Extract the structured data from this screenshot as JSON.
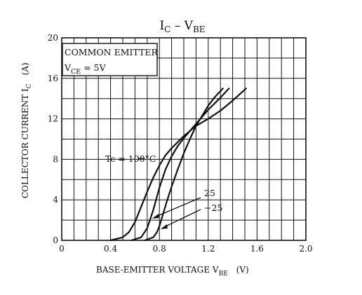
{
  "chart_data": {
    "type": "line",
    "title": "I_C – V_BE",
    "title_main": "I",
    "title_sub1": "C",
    "title_dash": " – V",
    "title_sub2": "BE",
    "xlabel_main": "BASE-EMITTER VOLTAGE  V",
    "xlabel_sub": "BE",
    "xlabel_unit": "(V)",
    "ylabel_main": "COLLECTOR CURRENT  I",
    "ylabel_sub": "C",
    "ylabel_unit": "(A)",
    "xlim": [
      0,
      2.0
    ],
    "ylim": [
      0,
      20
    ],
    "x_ticks": [
      0,
      0.4,
      0.8,
      1.2,
      1.6,
      2.0
    ],
    "x_tick_labels": [
      "0",
      "0.4",
      "0.8",
      "1.2",
      "1.6",
      "2.0"
    ],
    "y_ticks": [
      0,
      4,
      8,
      12,
      16,
      20
    ],
    "y_tick_labels": [
      "0",
      "4",
      "8",
      "12",
      "16",
      "20"
    ],
    "grid": true,
    "legend_box": {
      "line1": "COMMON EMITTER",
      "line2_main": "V",
      "line2_sub": "CE",
      "line2_rest": " = 5V"
    },
    "series": [
      {
        "name": "Tc = 100°C",
        "label": "Tc = 100°C",
        "x": [
          0.4,
          0.5,
          0.55,
          0.6,
          0.65,
          0.7,
          0.75,
          0.8,
          0.85,
          0.9,
          0.95,
          1.0,
          1.1,
          1.2,
          1.3,
          1.4,
          1.51
        ],
        "y": [
          0.0,
          0.3,
          0.8,
          1.8,
          3.3,
          4.8,
          6.2,
          7.4,
          8.4,
          9.1,
          9.7,
          10.3,
          11.3,
          12.0,
          12.8,
          13.8,
          15.0
        ]
      },
      {
        "name": "25",
        "label": "25",
        "x": [
          0.57,
          0.65,
          0.7,
          0.75,
          0.8,
          0.85,
          0.9,
          0.95,
          1.0,
          1.05,
          1.1,
          1.2,
          1.3,
          1.37
        ],
        "y": [
          0.0,
          0.3,
          1.2,
          3.0,
          5.2,
          7.0,
          8.3,
          9.3,
          10.1,
          10.8,
          11.5,
          12.9,
          14.1,
          15.0
        ]
      },
      {
        "name": "−25",
        "label": "−25",
        "x": [
          0.68,
          0.75,
          0.78,
          0.8,
          0.83,
          0.86,
          0.9,
          0.95,
          1.0,
          1.05,
          1.1,
          1.15,
          1.2,
          1.25,
          1.32
        ],
        "y": [
          0.0,
          0.3,
          0.8,
          1.4,
          2.6,
          3.8,
          5.3,
          7.0,
          8.6,
          10.0,
          11.3,
          12.3,
          13.3,
          14.1,
          15.0
        ]
      }
    ]
  }
}
